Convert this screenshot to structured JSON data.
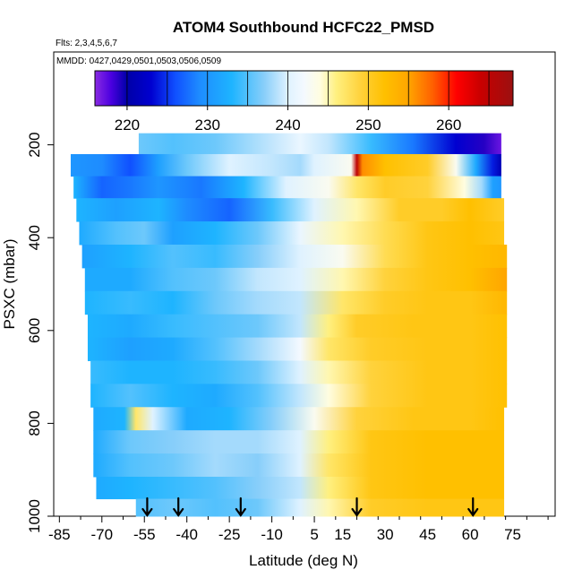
{
  "chart_data": {
    "type": "heatmap",
    "title": "ATOM4 Southbound HCFC22_PMSD",
    "subtitle_flights": "Flts: 2,3,4,5,6,7",
    "subtitle_dates": "MMDD: 0427,0429,0501,0503,0506,0509",
    "xlabel": "Latitude (deg N)",
    "ylabel": "PSXC (mbar)",
    "xlim": [
      -87,
      90
    ],
    "ylim": [
      1000,
      0
    ],
    "x_ticks": [
      -85,
      -70,
      -55,
      -40,
      -25,
      -10,
      5,
      15,
      30,
      45,
      60,
      75
    ],
    "x_tick_labels": [
      "-85",
      "-70",
      "-55",
      "-40",
      "-25",
      "-10",
      "5",
      "15",
      "30",
      "45",
      "60",
      "75"
    ],
    "y_ticks": [
      200,
      400,
      600,
      800,
      1000
    ],
    "y_tick_labels": [
      "200",
      "400",
      "600",
      "800",
      "1000"
    ],
    "colorbar": {
      "min": 216,
      "max": 268,
      "ticks": [
        220,
        230,
        240,
        250,
        260
      ],
      "tick_labels": [
        "220",
        "230",
        "240",
        "250",
        "260"
      ],
      "stops": [
        {
          "v": 216,
          "c": "#8a2be2"
        },
        {
          "v": 218,
          "c": "#4b00e0"
        },
        {
          "v": 220,
          "c": "#0000a8"
        },
        {
          "v": 223,
          "c": "#0000d0"
        },
        {
          "v": 226,
          "c": "#1050ff"
        },
        {
          "v": 229,
          "c": "#1e8cff"
        },
        {
          "v": 233,
          "c": "#1eb4ff"
        },
        {
          "v": 237,
          "c": "#87cefa"
        },
        {
          "v": 240,
          "c": "#dff2ff"
        },
        {
          "v": 242,
          "c": "#f4f9ff"
        },
        {
          "v": 244,
          "c": "#fffde0"
        },
        {
          "v": 246,
          "c": "#fff080"
        },
        {
          "v": 249,
          "c": "#ffd23c"
        },
        {
          "v": 252,
          "c": "#ffc000"
        },
        {
          "v": 255,
          "c": "#ffa500"
        },
        {
          "v": 258,
          "c": "#ff6000"
        },
        {
          "v": 261,
          "c": "#ff0000"
        },
        {
          "v": 264,
          "c": "#c80000"
        },
        {
          "v": 268,
          "c": "#9b1010"
        }
      ]
    },
    "arrow_latitudes": [
      -54,
      -43,
      -21,
      20,
      61
    ],
    "profile_layers": [
      {
        "p": 195,
        "lat_min": -57,
        "lat_max": 71,
        "profile": [
          [
            -57,
            236
          ],
          [
            -45,
            235
          ],
          [
            -30,
            236
          ],
          [
            -10,
            239
          ],
          [
            0,
            241
          ],
          [
            10,
            239
          ],
          [
            25,
            234
          ],
          [
            40,
            228
          ],
          [
            55,
            223
          ],
          [
            65,
            219
          ],
          [
            71,
            217
          ]
        ]
      },
      {
        "p": 245,
        "lat_min": -81,
        "lat_max": 71,
        "profile": [
          [
            -81,
            230
          ],
          [
            -70,
            229
          ],
          [
            -60,
            226
          ],
          [
            -50,
            231
          ],
          [
            -40,
            236
          ],
          [
            -25,
            240
          ],
          [
            -10,
            239
          ],
          [
            0,
            238
          ],
          [
            5,
            240
          ],
          [
            18,
            243
          ],
          [
            20,
            265
          ],
          [
            22,
            256
          ],
          [
            30,
            252
          ],
          [
            45,
            250
          ],
          [
            55,
            243
          ],
          [
            62,
            232
          ],
          [
            68,
            224
          ],
          [
            71,
            221
          ]
        ]
      },
      {
        "p": 290,
        "lat_min": -80,
        "lat_max": 71,
        "profile": [
          [
            -80,
            233
          ],
          [
            -70,
            227
          ],
          [
            -60,
            228
          ],
          [
            -50,
            230
          ],
          [
            -35,
            228
          ],
          [
            -20,
            233
          ],
          [
            -5,
            240
          ],
          [
            10,
            243
          ],
          [
            20,
            247
          ],
          [
            30,
            250
          ],
          [
            45,
            249
          ],
          [
            58,
            244
          ],
          [
            64,
            238
          ],
          [
            68,
            231
          ],
          [
            71,
            230
          ]
        ]
      },
      {
        "p": 340,
        "lat_min": -79,
        "lat_max": 72,
        "profile": [
          [
            -79,
            233
          ],
          [
            -65,
            231
          ],
          [
            -50,
            233
          ],
          [
            -40,
            229
          ],
          [
            -25,
            227
          ],
          [
            -10,
            234
          ],
          [
            5,
            240
          ],
          [
            20,
            245
          ],
          [
            35,
            250
          ],
          [
            50,
            250
          ],
          [
            60,
            252
          ],
          [
            72,
            250
          ]
        ]
      },
      {
        "p": 390,
        "lat_min": -78,
        "lat_max": 72,
        "profile": [
          [
            -78,
            232
          ],
          [
            -65,
            235
          ],
          [
            -55,
            236
          ],
          [
            -45,
            231
          ],
          [
            -30,
            233
          ],
          [
            -15,
            236
          ],
          [
            0,
            241
          ],
          [
            15,
            245
          ],
          [
            30,
            248
          ],
          [
            45,
            251
          ],
          [
            60,
            252
          ],
          [
            72,
            251
          ]
        ]
      },
      {
        "p": 440,
        "lat_min": -77,
        "lat_max": 73,
        "profile": [
          [
            -77,
            231
          ],
          [
            -60,
            233
          ],
          [
            -45,
            235
          ],
          [
            -30,
            234
          ],
          [
            -15,
            237
          ],
          [
            0,
            240
          ],
          [
            15,
            243
          ],
          [
            30,
            248
          ],
          [
            45,
            251
          ],
          [
            60,
            252
          ],
          [
            73,
            253
          ]
        ]
      },
      {
        "p": 490,
        "lat_min": -76,
        "lat_max": 73,
        "profile": [
          [
            -76,
            232
          ],
          [
            -60,
            232
          ],
          [
            -45,
            235
          ],
          [
            -30,
            236
          ],
          [
            -15,
            239
          ],
          [
            0,
            240
          ],
          [
            15,
            245
          ],
          [
            30,
            249
          ],
          [
            45,
            251
          ],
          [
            60,
            252
          ],
          [
            73,
            255
          ]
        ]
      },
      {
        "p": 540,
        "lat_min": -76,
        "lat_max": 73,
        "profile": [
          [
            -76,
            233
          ],
          [
            -60,
            234
          ],
          [
            -45,
            233
          ],
          [
            -30,
            236
          ],
          [
            -15,
            238
          ],
          [
            0,
            239
          ],
          [
            15,
            247
          ],
          [
            30,
            250
          ],
          [
            45,
            251
          ],
          [
            60,
            251
          ],
          [
            73,
            253
          ]
        ]
      },
      {
        "p": 590,
        "lat_min": -75,
        "lat_max": 73,
        "profile": [
          [
            -75,
            233
          ],
          [
            -60,
            232
          ],
          [
            -45,
            234
          ],
          [
            -30,
            235
          ],
          [
            -15,
            236
          ],
          [
            0,
            239
          ],
          [
            10,
            246
          ],
          [
            20,
            250
          ],
          [
            40,
            251
          ],
          [
            60,
            251
          ],
          [
            73,
            252
          ]
        ]
      },
      {
        "p": 640,
        "lat_min": -75,
        "lat_max": 73,
        "profile": [
          [
            -75,
            233
          ],
          [
            -60,
            231
          ],
          [
            -45,
            232
          ],
          [
            -30,
            235
          ],
          [
            -15,
            238
          ],
          [
            0,
            242
          ],
          [
            10,
            247
          ],
          [
            25,
            250
          ],
          [
            45,
            251
          ],
          [
            60,
            251
          ],
          [
            73,
            252
          ]
        ]
      },
      {
        "p": 690,
        "lat_min": -74,
        "lat_max": 73,
        "profile": [
          [
            -74,
            234
          ],
          [
            -60,
            233
          ],
          [
            -45,
            233
          ],
          [
            -30,
            234
          ],
          [
            -15,
            236
          ],
          [
            0,
            240
          ],
          [
            10,
            245
          ],
          [
            25,
            249
          ],
          [
            45,
            251
          ],
          [
            60,
            251
          ],
          [
            73,
            252
          ]
        ]
      },
      {
        "p": 740,
        "lat_min": -74,
        "lat_max": 73,
        "profile": [
          [
            -74,
            233
          ],
          [
            -60,
            235
          ],
          [
            -45,
            233
          ],
          [
            -30,
            232
          ],
          [
            -15,
            235
          ],
          [
            0,
            239
          ],
          [
            10,
            244
          ],
          [
            25,
            249
          ],
          [
            45,
            251
          ],
          [
            60,
            251
          ],
          [
            73,
            252
          ]
        ]
      },
      {
        "p": 790,
        "lat_min": -73,
        "lat_max": 72,
        "profile": [
          [
            -73,
            232
          ],
          [
            -62,
            233
          ],
          [
            -58,
            247
          ],
          [
            -52,
            240
          ],
          [
            -40,
            232
          ],
          [
            -25,
            233
          ],
          [
            -10,
            237
          ],
          [
            5,
            243
          ],
          [
            20,
            249
          ],
          [
            40,
            251
          ],
          [
            60,
            251
          ],
          [
            72,
            252
          ]
        ]
      },
      {
        "p": 840,
        "lat_min": -73,
        "lat_max": 72,
        "profile": [
          [
            -73,
            232
          ],
          [
            -60,
            236
          ],
          [
            -45,
            237
          ],
          [
            -30,
            238
          ],
          [
            -15,
            238
          ],
          [
            0,
            240
          ],
          [
            10,
            246
          ],
          [
            25,
            251
          ],
          [
            45,
            252
          ],
          [
            60,
            252
          ],
          [
            72,
            252
          ]
        ]
      },
      {
        "p": 890,
        "lat_min": -73,
        "lat_max": 72,
        "profile": [
          [
            -73,
            232
          ],
          [
            -60,
            235
          ],
          [
            -45,
            236
          ],
          [
            -30,
            238
          ],
          [
            -15,
            237
          ],
          [
            0,
            240
          ],
          [
            10,
            247
          ],
          [
            25,
            251
          ],
          [
            45,
            252
          ],
          [
            60,
            252
          ],
          [
            72,
            252
          ]
        ]
      },
      {
        "p": 940,
        "lat_min": -72,
        "lat_max": 72,
        "profile": [
          [
            -72,
            232
          ],
          [
            -60,
            233
          ],
          [
            -45,
            234
          ],
          [
            -30,
            235
          ],
          [
            -15,
            237
          ],
          [
            0,
            239
          ],
          [
            10,
            246
          ],
          [
            25,
            251
          ],
          [
            45,
            252
          ],
          [
            60,
            252
          ],
          [
            72,
            252
          ]
        ]
      },
      {
        "p": 985,
        "lat_min": -58,
        "lat_max": 72,
        "profile": [
          [
            -58,
            235
          ],
          [
            -45,
            236
          ],
          [
            -30,
            235
          ],
          [
            -15,
            236
          ],
          [
            0,
            240
          ],
          [
            10,
            245
          ],
          [
            25,
            250
          ],
          [
            45,
            251
          ],
          [
            60,
            251
          ],
          [
            72,
            251
          ]
        ]
      }
    ]
  }
}
